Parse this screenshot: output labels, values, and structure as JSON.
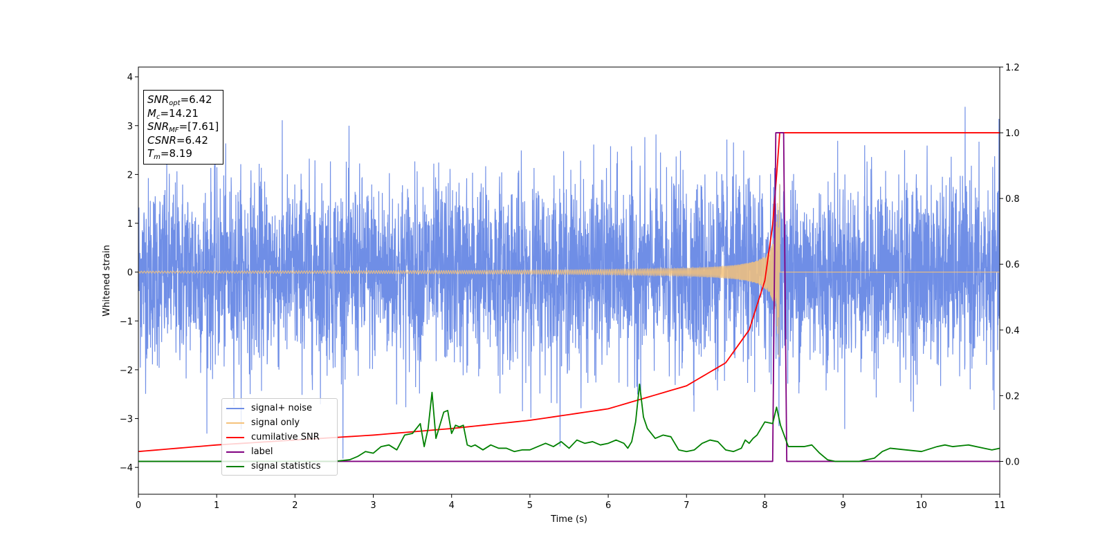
{
  "chart_data": {
    "type": "line",
    "xlabel": "Time (s)",
    "ylabel": "Whitened strain",
    "xlim": [
      0,
      11
    ],
    "ylim": [
      -4.55,
      4.2
    ],
    "ylim_right": [
      -0.1,
      1.2
    ],
    "x_ticks": [
      "0",
      "1",
      "2",
      "3",
      "4",
      "5",
      "6",
      "7",
      "8",
      "9",
      "10",
      "11"
    ],
    "y_ticks": [
      "−4",
      "−3",
      "−2",
      "−1",
      "0",
      "1",
      "2",
      "3",
      "4"
    ],
    "y_ticks_right": [
      "0.0",
      "0.2",
      "0.4",
      "0.6",
      "0.8",
      "1.0",
      "1.2"
    ],
    "grid": false,
    "legend_position": "lower-left",
    "stats": [
      {
        "symbol": "SNR",
        "sub": "opt",
        "value": "=6.42"
      },
      {
        "symbol": "M",
        "sub": "c",
        "value": "=14.21"
      },
      {
        "symbol": "SNR",
        "sub": "MF",
        "value": "=[7.61]"
      },
      {
        "symbol": "CSNR",
        "sub": "",
        "value": "=6.42"
      },
      {
        "symbol": "T",
        "sub": "m",
        "value": "=8.19"
      }
    ],
    "series": [
      {
        "name": "signal+ noise",
        "color": "#6f8ee6",
        "axis": "left",
        "description_values": "white noise, roughly ±2.5 with spikes up to 3.8",
        "noise_std": 1.0,
        "peak_max": 3.8,
        "peak_min": -4.15
      },
      {
        "name": "signal only",
        "color": "#f5c27a",
        "axis": "left",
        "chirp_merger_time": 8.19,
        "chirp_peak_amplitude": 1.8,
        "chirp_start_amplitude": 0.02
      },
      {
        "name": "cumilative SNR",
        "color": "#ff0000",
        "axis": "right",
        "x": [
          0,
          1,
          2,
          3,
          4,
          5,
          6,
          7,
          7.5,
          7.8,
          8.0,
          8.1,
          8.15,
          8.19,
          9,
          10,
          11
        ],
        "y": [
          0.03,
          0.05,
          0.065,
          0.08,
          0.1,
          0.125,
          0.16,
          0.23,
          0.3,
          0.4,
          0.55,
          0.72,
          0.87,
          1.0,
          1.0,
          1.0,
          1.0
        ]
      },
      {
        "name": "label",
        "color": "#800080",
        "axis": "right",
        "x": [
          0,
          8.1,
          8.14,
          8.24,
          8.28,
          11
        ],
        "y": [
          0,
          0,
          1,
          1,
          0,
          0
        ]
      },
      {
        "name": "signal statistics",
        "color": "#008000",
        "axis": "right",
        "x": [
          0,
          0.5,
          1,
          1.5,
          2,
          2.5,
          2.7,
          2.8,
          2.9,
          3.0,
          3.1,
          3.2,
          3.3,
          3.4,
          3.5,
          3.6,
          3.65,
          3.7,
          3.75,
          3.8,
          3.85,
          3.9,
          3.95,
          4.0,
          4.05,
          4.1,
          4.15,
          4.2,
          4.25,
          4.3,
          4.4,
          4.5,
          4.6,
          4.7,
          4.8,
          4.9,
          5.0,
          5.1,
          5.2,
          5.3,
          5.4,
          5.5,
          5.6,
          5.7,
          5.8,
          5.9,
          6.0,
          6.1,
          6.2,
          6.25,
          6.3,
          6.35,
          6.4,
          6.45,
          6.5,
          6.6,
          6.7,
          6.8,
          6.9,
          7.0,
          7.1,
          7.2,
          7.3,
          7.4,
          7.5,
          7.6,
          7.7,
          7.75,
          7.8,
          7.85,
          7.9,
          8.0,
          8.1,
          8.15,
          8.2,
          8.3,
          8.4,
          8.5,
          8.6,
          8.7,
          8.8,
          8.9,
          9.0,
          9.2,
          9.4,
          9.5,
          9.6,
          9.8,
          10.0,
          10.2,
          10.3,
          10.4,
          10.6,
          10.8,
          10.9,
          11.0
        ],
        "y": [
          0.0,
          0.0,
          0.0,
          0.0,
          0.0,
          0.0,
          0.005,
          0.015,
          0.03,
          0.025,
          0.045,
          0.05,
          0.035,
          0.08,
          0.085,
          0.115,
          0.045,
          0.1,
          0.21,
          0.07,
          0.11,
          0.15,
          0.155,
          0.085,
          0.11,
          0.105,
          0.11,
          0.05,
          0.045,
          0.05,
          0.035,
          0.05,
          0.04,
          0.04,
          0.03,
          0.035,
          0.035,
          0.045,
          0.055,
          0.045,
          0.06,
          0.04,
          0.065,
          0.055,
          0.06,
          0.05,
          0.055,
          0.065,
          0.055,
          0.04,
          0.06,
          0.12,
          0.235,
          0.135,
          0.1,
          0.07,
          0.08,
          0.075,
          0.035,
          0.03,
          0.035,
          0.055,
          0.065,
          0.06,
          0.035,
          0.03,
          0.04,
          0.065,
          0.055,
          0.07,
          0.08,
          0.12,
          0.115,
          0.165,
          0.11,
          0.045,
          0.045,
          0.045,
          0.05,
          0.025,
          0.005,
          0.0,
          0.0,
          0.0,
          0.01,
          0.03,
          0.04,
          0.035,
          0.03,
          0.045,
          0.05,
          0.045,
          0.05,
          0.04,
          0.035,
          0.04
        ]
      }
    ]
  }
}
